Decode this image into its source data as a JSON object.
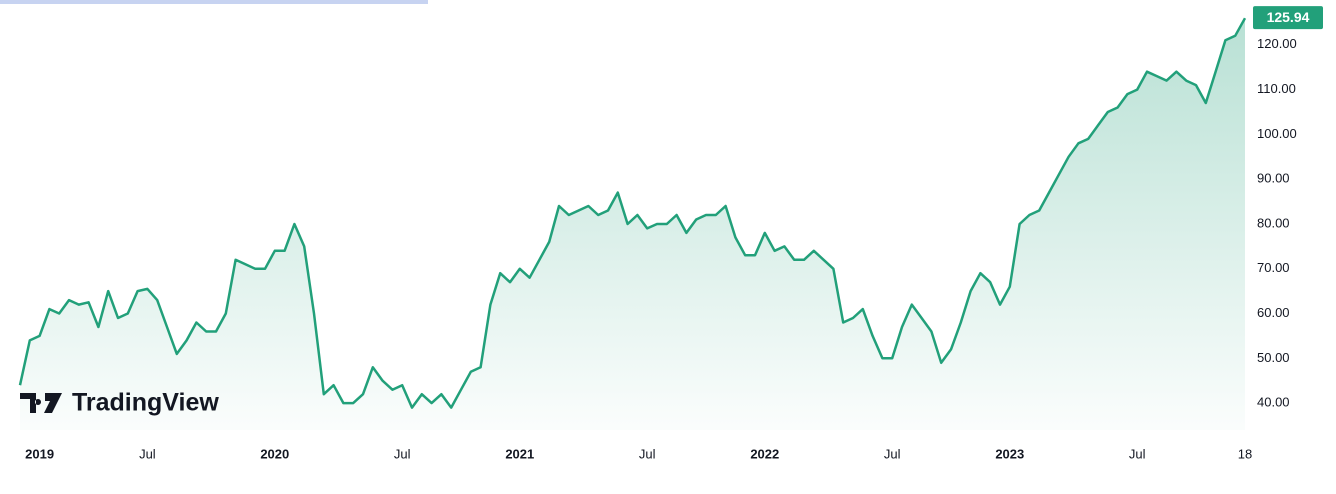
{
  "chart_data": {
    "type": "line",
    "watermark": "TradingView",
    "color": "#22a07a",
    "values": [
      44,
      54,
      55,
      61,
      60,
      63,
      62,
      62.5,
      57,
      65,
      59,
      60,
      65,
      65.5,
      63,
      57,
      51,
      54,
      58,
      56,
      56,
      60,
      72,
      71,
      70,
      70,
      74,
      74,
      80,
      75,
      60,
      42,
      44,
      40,
      40,
      42,
      48,
      45,
      43,
      44,
      39,
      42,
      40,
      42,
      39,
      43,
      47,
      48,
      62,
      69,
      67,
      70,
      68,
      72,
      76,
      84,
      82,
      83,
      84,
      82,
      83,
      87,
      80,
      82,
      79,
      80,
      80,
      82,
      78,
      81,
      82,
      82,
      84,
      77,
      73,
      73,
      78,
      74,
      75,
      72,
      72,
      74,
      72,
      70,
      58,
      59,
      61,
      55,
      50,
      50,
      57,
      62,
      59,
      56,
      49,
      52,
      58,
      65,
      69,
      67,
      62,
      66,
      80,
      82,
      83,
      87,
      91,
      95,
      98,
      99,
      102,
      105,
      106,
      109,
      110,
      114,
      113,
      112,
      114,
      112,
      111,
      107,
      114,
      121,
      122,
      125.94
    ],
    "xlim": [
      0,
      125
    ],
    "xticks": [
      {
        "value": 2,
        "label": "2019"
      },
      {
        "value": 13,
        "label": "Jul"
      },
      {
        "value": 26,
        "label": "2020"
      },
      {
        "value": 39,
        "label": "Jul"
      },
      {
        "value": 51,
        "label": "2021"
      },
      {
        "value": 64,
        "label": "Jul"
      },
      {
        "value": 76,
        "label": "2022"
      },
      {
        "value": 89,
        "label": "Jul"
      },
      {
        "value": 101,
        "label": "2023"
      },
      {
        "value": 114,
        "label": "Jul"
      },
      {
        "value": 125,
        "label": "18"
      }
    ],
    "ylim": [
      34,
      130
    ],
    "yticks": [
      {
        "value": 40,
        "label": "40.00"
      },
      {
        "value": 50,
        "label": "50.00"
      },
      {
        "value": 60,
        "label": "60.00"
      },
      {
        "value": 70,
        "label": "70.00"
      },
      {
        "value": 80,
        "label": "80.00"
      },
      {
        "value": 90,
        "label": "90.00"
      },
      {
        "value": 100,
        "label": "100.00"
      },
      {
        "value": 110,
        "label": "110.00"
      },
      {
        "value": 120,
        "label": "120.00"
      }
    ]
  }
}
